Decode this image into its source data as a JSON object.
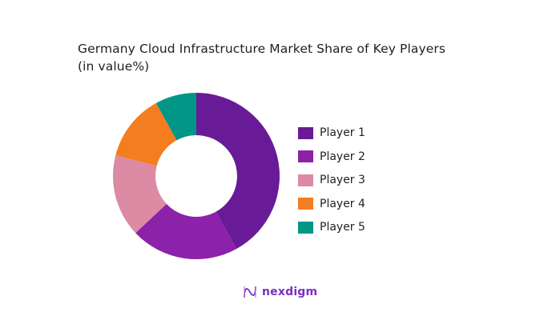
{
  "chart_data": {
    "type": "pie",
    "variant": "donut",
    "title": "Germany Cloud Infrastructure Market Share of Key Players",
    "subtitle": "(in value%)",
    "categories": [
      "Player 1",
      "Player 2",
      "Player 3",
      "Player 4",
      "Player 5"
    ],
    "values": [
      42,
      21,
      16,
      13,
      8
    ],
    "colors": [
      "#681a97",
      "#8b22a9",
      "#dd8aa4",
      "#f47d20",
      "#029687"
    ],
    "legend_position": "right",
    "start_angle_deg": 0,
    "direction": "clockwise",
    "inner_radius_ratio": 0.49
  },
  "title": {
    "line1": "Germany Cloud Infrastructure Market Share of Key Players",
    "line2": "(in value%)"
  },
  "legend": {
    "items": [
      {
        "label": "Player 1",
        "color": "#681a97"
      },
      {
        "label": "Player 2",
        "color": "#8b22a9"
      },
      {
        "label": "Player 3",
        "color": "#dd8aa4"
      },
      {
        "label": "Player 4",
        "color": "#f47d20"
      },
      {
        "label": "Player 5",
        "color": "#029687"
      }
    ]
  },
  "branding": {
    "logo_text": "nexdigm",
    "logo_icon": "wave-n-icon"
  }
}
